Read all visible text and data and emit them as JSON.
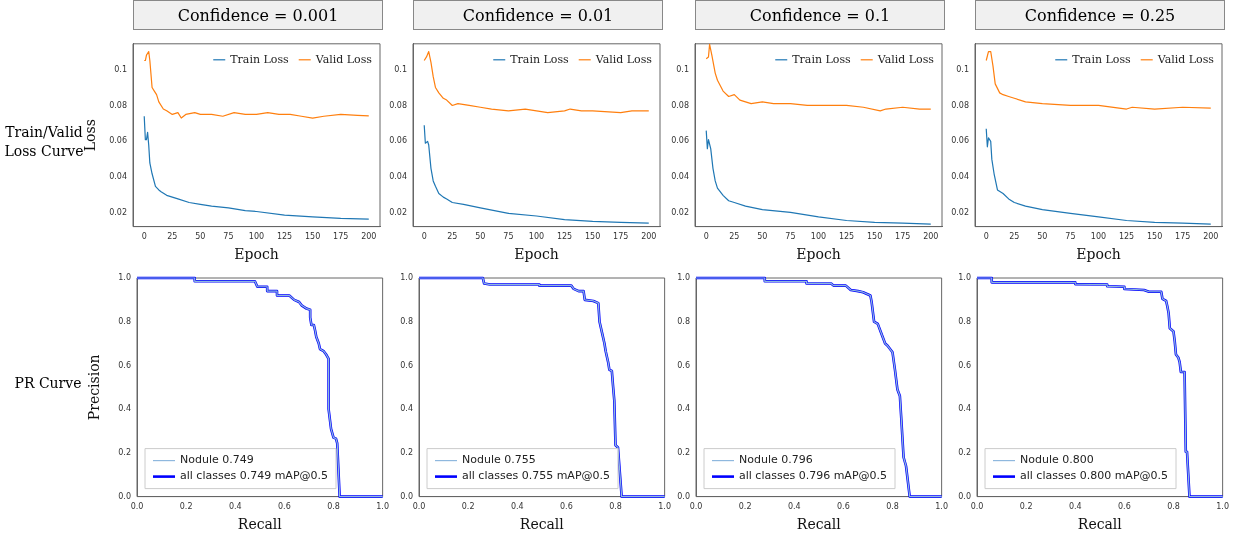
{
  "chart_data": [
    {
      "type": "line",
      "title": "Confidence = 0.001",
      "xlabel": "Epoch",
      "ylabel": "Loss",
      "annotations": [
        "Train/Valid Loss Curve"
      ],
      "legend": "top right",
      "xlim": [
        -10,
        210
      ],
      "ylim": [
        0.0126,
        0.1143
      ],
      "xticks": [
        0,
        25,
        50,
        75,
        100,
        125,
        150,
        175,
        200
      ],
      "yticks": [
        0.02,
        0.04,
        0.06,
        0.08,
        0.1
      ],
      "series": [
        {
          "name": "Train Loss",
          "color": "#1f77b4",
          "x": [
            0,
            1,
            2,
            3,
            4,
            5,
            7,
            10,
            13,
            15,
            20,
            25,
            30,
            40,
            50,
            60,
            75,
            90,
            100,
            125,
            150,
            175,
            200
          ],
          "values": [
            0.074,
            0.061,
            0.061,
            0.065,
            0.058,
            0.048,
            0.042,
            0.035,
            0.033,
            0.032,
            0.03,
            0.029,
            0.028,
            0.026,
            0.025,
            0.024,
            0.023,
            0.0215,
            0.021,
            0.019,
            0.018,
            0.0172,
            0.0168
          ]
        },
        {
          "name": "Valid Loss",
          "color": "#ff7f0e",
          "x": [
            0,
            1,
            2,
            4,
            5,
            7,
            9,
            11,
            13,
            17,
            20,
            25,
            30,
            33,
            37,
            45,
            50,
            60,
            70,
            80,
            90,
            100,
            110,
            120,
            130,
            140,
            150,
            160,
            175,
            190,
            200
          ],
          "values": [
            0.105,
            0.105,
            0.108,
            0.11,
            0.105,
            0.09,
            0.088,
            0.086,
            0.082,
            0.078,
            0.077,
            0.075,
            0.076,
            0.073,
            0.075,
            0.076,
            0.075,
            0.075,
            0.074,
            0.076,
            0.075,
            0.075,
            0.076,
            0.075,
            0.075,
            0.074,
            0.073,
            0.074,
            0.075,
            0.0745,
            0.0742
          ]
        }
      ]
    },
    {
      "type": "line",
      "title": "Confidence = 0.01",
      "xlabel": "Epoch",
      "legend": "top right",
      "xlim": [
        -10,
        210
      ],
      "ylim": [
        0.0126,
        0.1143
      ],
      "xticks": [
        0,
        25,
        50,
        75,
        100,
        125,
        150,
        175,
        200
      ],
      "yticks": [
        0.02,
        0.04,
        0.06,
        0.08,
        0.1
      ],
      "series": [
        {
          "name": "Train Loss",
          "color": "#1f77b4",
          "x": [
            0,
            1,
            3,
            4,
            6,
            8,
            10,
            13,
            17,
            20,
            25,
            35,
            50,
            75,
            100,
            125,
            150,
            175,
            200
          ],
          "values": [
            0.069,
            0.059,
            0.06,
            0.058,
            0.045,
            0.038,
            0.035,
            0.031,
            0.029,
            0.028,
            0.026,
            0.025,
            0.023,
            0.02,
            0.0185,
            0.0165,
            0.0155,
            0.015,
            0.0145
          ]
        },
        {
          "name": "Valid Loss",
          "color": "#ff7f0e",
          "x": [
            0,
            2,
            4,
            6,
            8,
            10,
            13,
            17,
            20,
            25,
            30,
            40,
            50,
            60,
            75,
            90,
            100,
            110,
            125,
            130,
            140,
            150,
            175,
            185,
            200
          ],
          "values": [
            0.105,
            0.107,
            0.11,
            0.104,
            0.096,
            0.09,
            0.087,
            0.084,
            0.083,
            0.08,
            0.081,
            0.08,
            0.079,
            0.078,
            0.077,
            0.078,
            0.077,
            0.076,
            0.077,
            0.078,
            0.077,
            0.077,
            0.076,
            0.077,
            0.077
          ]
        }
      ]
    },
    {
      "type": "line",
      "title": "Confidence = 0.1",
      "xlabel": "Epoch",
      "legend": "top right",
      "xlim": [
        -10,
        210
      ],
      "ylim": [
        0.0126,
        0.1143
      ],
      "xticks": [
        0,
        25,
        50,
        75,
        100,
        125,
        150,
        175,
        200
      ],
      "yticks": [
        0.02,
        0.04,
        0.06,
        0.08,
        0.1
      ],
      "series": [
        {
          "name": "Train Loss",
          "color": "#1f77b4",
          "x": [
            0,
            1,
            2,
            4,
            6,
            8,
            10,
            15,
            20,
            25,
            35,
            50,
            75,
            100,
            125,
            150,
            175,
            200
          ],
          "values": [
            0.066,
            0.056,
            0.061,
            0.056,
            0.045,
            0.038,
            0.034,
            0.03,
            0.027,
            0.026,
            0.024,
            0.022,
            0.0205,
            0.018,
            0.016,
            0.015,
            0.0145,
            0.014
          ]
        },
        {
          "name": "Valid Loss",
          "color": "#ff7f0e",
          "x": [
            0,
            2,
            3,
            5,
            8,
            10,
            15,
            20,
            25,
            30,
            40,
            50,
            60,
            75,
            90,
            100,
            125,
            140,
            155,
            160,
            175,
            190,
            200
          ],
          "values": [
            0.106,
            0.107,
            0.114,
            0.108,
            0.098,
            0.094,
            0.088,
            0.085,
            0.086,
            0.083,
            0.081,
            0.082,
            0.081,
            0.081,
            0.08,
            0.08,
            0.08,
            0.079,
            0.077,
            0.078,
            0.079,
            0.078,
            0.078
          ]
        }
      ]
    },
    {
      "type": "line",
      "title": "Confidence = 0.25",
      "xlabel": "Epoch",
      "legend": "top right",
      "xlim": [
        -10,
        210
      ],
      "ylim": [
        0.0126,
        0.1143
      ],
      "xticks": [
        0,
        25,
        50,
        75,
        100,
        125,
        150,
        175,
        200
      ],
      "yticks": [
        0.02,
        0.04,
        0.06,
        0.08,
        0.1
      ],
      "series": [
        {
          "name": "Train Loss",
          "color": "#1f77b4",
          "x": [
            0,
            1,
            2,
            4,
            5,
            7,
            10,
            15,
            20,
            25,
            35,
            50,
            75,
            100,
            125,
            150,
            175,
            200
          ],
          "values": [
            0.067,
            0.057,
            0.062,
            0.06,
            0.05,
            0.042,
            0.033,
            0.031,
            0.028,
            0.026,
            0.024,
            0.022,
            0.02,
            0.018,
            0.016,
            0.015,
            0.0145,
            0.014
          ]
        },
        {
          "name": "Valid Loss",
          "color": "#ff7f0e",
          "x": [
            0,
            2,
            4,
            6,
            8,
            12,
            15,
            20,
            25,
            35,
            50,
            75,
            100,
            125,
            130,
            150,
            175,
            200
          ],
          "values": [
            0.105,
            0.11,
            0.11,
            0.102,
            0.092,
            0.087,
            0.086,
            0.085,
            0.084,
            0.082,
            0.081,
            0.08,
            0.08,
            0.078,
            0.079,
            0.078,
            0.079,
            0.0785
          ]
        }
      ]
    },
    {
      "type": "line",
      "xlabel": "Recall",
      "ylabel": "Precision",
      "annotations": [
        "PR Curve"
      ],
      "legend": "bottom left",
      "xlim": [
        0,
        1
      ],
      "ylim": [
        0,
        1
      ],
      "xticks": [
        {
          "value": 0,
          "label": "0.0"
        },
        {
          "value": 0.2,
          "label": "0.2"
        },
        {
          "value": 0.4,
          "label": "0.4"
        },
        {
          "value": 0.6,
          "label": "0.6"
        },
        {
          "value": 0.8,
          "label": "0.8"
        },
        {
          "value": 1,
          "label": "1.0"
        }
      ],
      "yticks": [
        {
          "value": 0,
          "label": "0.0"
        },
        {
          "value": 0.2,
          "label": "0.2"
        },
        {
          "value": 0.4,
          "label": "0.4"
        },
        {
          "value": 0.6,
          "label": "0.6"
        },
        {
          "value": 0.8,
          "label": "0.8"
        },
        {
          "value": 1,
          "label": "1.0"
        }
      ],
      "series": [
        {
          "name": "Nodule 0.749",
          "color": "#8fb8de",
          "x": [
            0,
            0.235,
            0.235,
            0.48,
            0.49,
            0.53,
            0.53,
            0.57,
            0.57,
            0.62,
            0.64,
            0.66,
            0.67,
            0.69,
            0.705,
            0.705,
            0.71,
            0.72,
            0.725,
            0.73,
            0.74,
            0.745,
            0.76,
            0.77,
            0.78,
            0.78,
            0.79,
            0.8,
            0.81,
            0.815,
            0.825,
            1
          ],
          "values": [
            1,
            1,
            0.985,
            0.985,
            0.96,
            0.96,
            0.94,
            0.94,
            0.92,
            0.92,
            0.9,
            0.89,
            0.875,
            0.86,
            0.855,
            0.82,
            0.785,
            0.785,
            0.76,
            0.73,
            0.7,
            0.675,
            0.665,
            0.65,
            0.63,
            0.4,
            0.31,
            0.27,
            0.265,
            0.245,
            0,
            0
          ]
        },
        {
          "name": "all classes 0.749 mAP@0.5",
          "color": "#0000ff",
          "x": [
            0,
            0.235,
            0.235,
            0.48,
            0.49,
            0.53,
            0.53,
            0.57,
            0.57,
            0.62,
            0.64,
            0.66,
            0.67,
            0.69,
            0.705,
            0.705,
            0.71,
            0.72,
            0.725,
            0.73,
            0.74,
            0.745,
            0.76,
            0.77,
            0.78,
            0.78,
            0.79,
            0.8,
            0.81,
            0.815,
            0.825,
            1
          ],
          "values": [
            1,
            1,
            0.985,
            0.985,
            0.96,
            0.96,
            0.94,
            0.94,
            0.92,
            0.92,
            0.9,
            0.89,
            0.875,
            0.86,
            0.855,
            0.82,
            0.785,
            0.785,
            0.76,
            0.73,
            0.7,
            0.675,
            0.665,
            0.65,
            0.63,
            0.4,
            0.31,
            0.27,
            0.265,
            0.245,
            0,
            0
          ]
        }
      ]
    },
    {
      "type": "line",
      "xlabel": "Recall",
      "legend": "bottom left",
      "xlim": [
        0,
        1
      ],
      "ylim": [
        0,
        1
      ],
      "xticks": [
        {
          "value": 0,
          "label": "0.0"
        },
        {
          "value": 0.2,
          "label": "0.2"
        },
        {
          "value": 0.4,
          "label": "0.4"
        },
        {
          "value": 0.6,
          "label": "0.6"
        },
        {
          "value": 0.8,
          "label": "0.8"
        },
        {
          "value": 1,
          "label": "1.0"
        }
      ],
      "yticks": [
        {
          "value": 0,
          "label": "0.0"
        },
        {
          "value": 0.2,
          "label": "0.2"
        },
        {
          "value": 0.4,
          "label": "0.4"
        },
        {
          "value": 0.6,
          "label": "0.6"
        },
        {
          "value": 0.8,
          "label": "0.8"
        },
        {
          "value": 1,
          "label": "1.0"
        }
      ],
      "series": [
        {
          "name": "Nodule 0.755",
          "color": "#8fb8de",
          "x": [
            0,
            0.26,
            0.265,
            0.29,
            0.49,
            0.49,
            0.62,
            0.63,
            0.65,
            0.67,
            0.675,
            0.71,
            0.73,
            0.735,
            0.745,
            0.755,
            0.76,
            0.77,
            0.775,
            0.785,
            0.79,
            0.795,
            0.8,
            0.81,
            0.825,
            1
          ],
          "values": [
            1,
            1,
            0.975,
            0.97,
            0.97,
            0.965,
            0.965,
            0.95,
            0.94,
            0.94,
            0.9,
            0.895,
            0.885,
            0.8,
            0.75,
            0.7,
            0.665,
            0.615,
            0.58,
            0.575,
            0.505,
            0.44,
            0.235,
            0.225,
            0,
            0
          ]
        },
        {
          "name": "all classes 0.755 mAP@0.5",
          "color": "#0000ff",
          "x": [
            0,
            0.26,
            0.265,
            0.29,
            0.49,
            0.49,
            0.62,
            0.63,
            0.65,
            0.67,
            0.675,
            0.71,
            0.73,
            0.735,
            0.745,
            0.755,
            0.76,
            0.77,
            0.775,
            0.785,
            0.79,
            0.795,
            0.8,
            0.81,
            0.825,
            1
          ],
          "values": [
            1,
            1,
            0.975,
            0.97,
            0.97,
            0.965,
            0.965,
            0.95,
            0.94,
            0.94,
            0.9,
            0.895,
            0.885,
            0.8,
            0.75,
            0.7,
            0.665,
            0.615,
            0.58,
            0.575,
            0.505,
            0.44,
            0.235,
            0.225,
            0,
            0
          ]
        }
      ]
    },
    {
      "type": "line",
      "xlabel": "Recall",
      "legend": "bottom left",
      "xlim": [
        0,
        1
      ],
      "ylim": [
        0,
        1
      ],
      "xticks": [
        {
          "value": 0,
          "label": "0.0"
        },
        {
          "value": 0.2,
          "label": "0.2"
        },
        {
          "value": 0.4,
          "label": "0.4"
        },
        {
          "value": 0.6,
          "label": "0.6"
        },
        {
          "value": 0.8,
          "label": "0.8"
        },
        {
          "value": 1,
          "label": "1.0"
        }
      ],
      "yticks": [
        {
          "value": 0,
          "label": "0.0"
        },
        {
          "value": 0.2,
          "label": "0.2"
        },
        {
          "value": 0.4,
          "label": "0.4"
        },
        {
          "value": 0.6,
          "label": "0.6"
        },
        {
          "value": 0.8,
          "label": "0.8"
        },
        {
          "value": 1,
          "label": "1.0"
        }
      ],
      "series": [
        {
          "name": "Nodule 0.796",
          "color": "#8fb8de",
          "x": [
            0,
            0.28,
            0.28,
            0.45,
            0.45,
            0.55,
            0.56,
            0.61,
            0.63,
            0.66,
            0.68,
            0.71,
            0.715,
            0.725,
            0.74,
            0.75,
            0.77,
            0.78,
            0.8,
            0.81,
            0.82,
            0.83,
            0.835,
            0.845,
            0.855,
            0.87,
            1
          ],
          "values": [
            1,
            1,
            0.985,
            0.985,
            0.975,
            0.975,
            0.965,
            0.965,
            0.945,
            0.94,
            0.935,
            0.92,
            0.89,
            0.8,
            0.79,
            0.76,
            0.7,
            0.69,
            0.66,
            0.58,
            0.49,
            0.46,
            0.37,
            0.18,
            0.14,
            0,
            0
          ]
        },
        {
          "name": "all classes 0.796 mAP@0.5",
          "color": "#0000ff",
          "x": [
            0,
            0.28,
            0.28,
            0.45,
            0.45,
            0.55,
            0.56,
            0.61,
            0.63,
            0.66,
            0.68,
            0.71,
            0.715,
            0.725,
            0.74,
            0.75,
            0.77,
            0.78,
            0.8,
            0.81,
            0.82,
            0.83,
            0.835,
            0.845,
            0.855,
            0.87,
            1
          ],
          "values": [
            1,
            1,
            0.985,
            0.985,
            0.975,
            0.975,
            0.965,
            0.965,
            0.945,
            0.94,
            0.935,
            0.92,
            0.89,
            0.8,
            0.79,
            0.76,
            0.7,
            0.69,
            0.66,
            0.58,
            0.49,
            0.46,
            0.37,
            0.18,
            0.14,
            0,
            0
          ]
        }
      ]
    },
    {
      "type": "line",
      "xlabel": "Recall",
      "legend": "bottom left",
      "xlim": [
        0,
        1
      ],
      "ylim": [
        0,
        1
      ],
      "xticks": [
        {
          "value": 0,
          "label": "0.0"
        },
        {
          "value": 0.2,
          "label": "0.2"
        },
        {
          "value": 0.4,
          "label": "0.4"
        },
        {
          "value": 0.6,
          "label": "0.6"
        },
        {
          "value": 0.8,
          "label": "0.8"
        },
        {
          "value": 1,
          "label": "1.0"
        }
      ],
      "yticks": [
        {
          "value": 0,
          "label": "0.0"
        },
        {
          "value": 0.2,
          "label": "0.2"
        },
        {
          "value": 0.4,
          "label": "0.4"
        },
        {
          "value": 0.6,
          "label": "0.6"
        },
        {
          "value": 0.8,
          "label": "0.8"
        },
        {
          "value": 1,
          "label": "1.0"
        }
      ],
      "series": [
        {
          "name": "Nodule 0.800",
          "color": "#8fb8de",
          "x": [
            0,
            0.06,
            0.06,
            0.4,
            0.4,
            0.53,
            0.53,
            0.6,
            0.6,
            0.68,
            0.7,
            0.75,
            0.755,
            0.77,
            0.775,
            0.78,
            0.785,
            0.8,
            0.805,
            0.81,
            0.82,
            0.825,
            0.83,
            0.845,
            0.85,
            0.855,
            0.865,
            1
          ],
          "values": [
            1,
            1,
            0.98,
            0.98,
            0.972,
            0.97,
            0.962,
            0.96,
            0.95,
            0.945,
            0.937,
            0.937,
            0.905,
            0.895,
            0.87,
            0.84,
            0.77,
            0.755,
            0.71,
            0.65,
            0.635,
            0.615,
            0.57,
            0.57,
            0.205,
            0.205,
            0,
            0
          ]
        },
        {
          "name": "all classes 0.800 mAP@0.5",
          "color": "#0000ff",
          "x": [
            0,
            0.06,
            0.06,
            0.4,
            0.4,
            0.53,
            0.53,
            0.6,
            0.6,
            0.68,
            0.7,
            0.75,
            0.755,
            0.77,
            0.775,
            0.78,
            0.785,
            0.8,
            0.805,
            0.81,
            0.82,
            0.825,
            0.83,
            0.845,
            0.85,
            0.855,
            0.865,
            1
          ],
          "values": [
            1,
            1,
            0.98,
            0.98,
            0.972,
            0.97,
            0.962,
            0.96,
            0.95,
            0.945,
            0.937,
            0.937,
            0.905,
            0.895,
            0.87,
            0.84,
            0.77,
            0.755,
            0.71,
            0.65,
            0.635,
            0.615,
            0.57,
            0.57,
            0.205,
            0.205,
            0,
            0
          ]
        }
      ]
    }
  ]
}
